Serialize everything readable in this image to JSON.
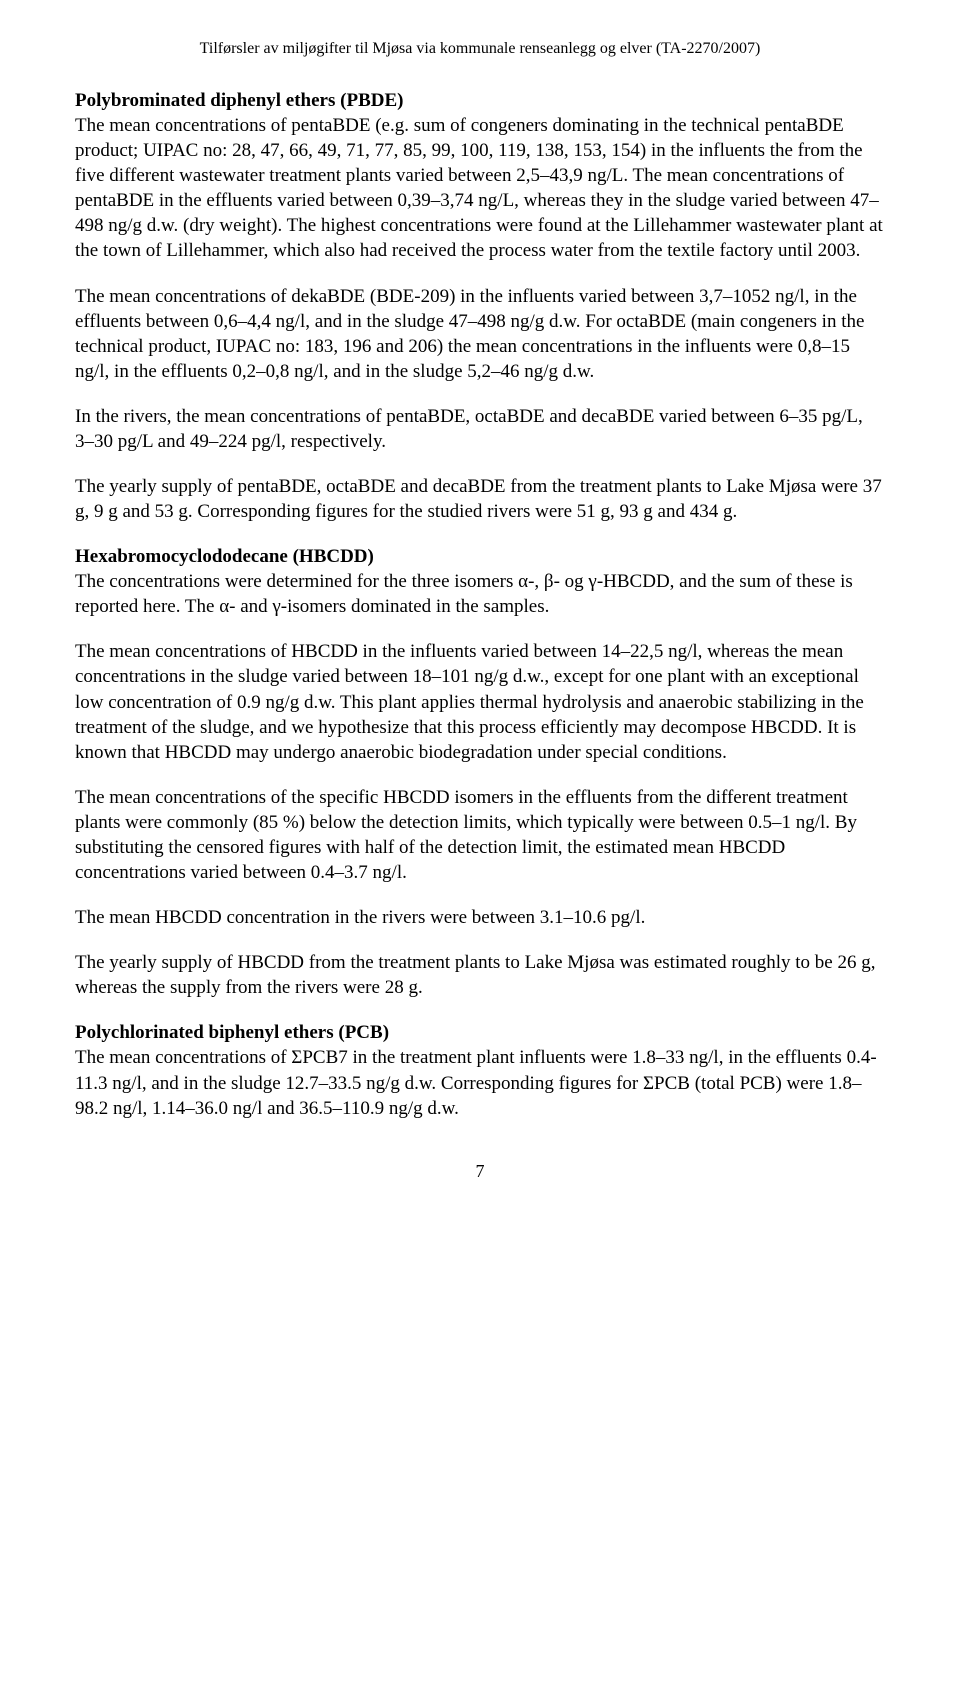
{
  "header": "Tilførsler av miljøgifter til Mjøsa via kommunale renseanlegg og elver (TA-2270/2007)",
  "section1": {
    "title": "Polybrominated diphenyl ethers (PBDE)",
    "p1": "The mean concentrations of pentaBDE (e.g. sum of congeners dominating in the technical pentaBDE product; UIPAC no: 28, 47, 66, 49, 71, 77, 85, 99, 100, 119, 138, 153, 154) in the influents the from the five different wastewater treatment plants varied between 2,5–43,9 ng/L. The mean concentrations of pentaBDE in the effluents varied between 0,39–3,74 ng/L, whereas they in the sludge varied between 47–498 ng/g d.w. (dry weight). The highest concentrations were found at the Lillehammer wastewater plant at the town of Lillehammer, which also had received the process water from the textile factory until 2003.",
    "p2": "The mean concentrations of dekaBDE (BDE-209) in the influents varied between 3,7–1052 ng/l, in the effluents between 0,6–4,4 ng/l, and in the sludge 47–498 ng/g d.w. For octaBDE (main congeners in the technical product, IUPAC no: 183, 196 and 206) the mean concentrations in the influents were 0,8–15 ng/l, in the effluents 0,2–0,8 ng/l, and in the sludge 5,2–46 ng/g d.w.",
    "p3": "In the rivers, the mean concentrations of pentaBDE, octaBDE and decaBDE varied between 6–35 pg/L, 3–30 pg/L and 49–224 pg/l, respectively.",
    "p4": "The yearly supply of pentaBDE, octaBDE and decaBDE from the treatment plants to Lake Mjøsa were 37 g, 9 g and 53 g. Corresponding figures for the studied rivers were 51 g, 93 g and 434 g."
  },
  "section2": {
    "title": "Hexabromocyclododecane (HBCDD)",
    "p1": "The concentrations were determined for the three isomers α-, β- og γ-HBCDD, and the sum of these is reported here. The α- and γ-isomers dominated in the samples.",
    "p2": "The mean concentrations of HBCDD in the influents varied between 14–22,5 ng/l, whereas the mean concentrations in the sludge varied between 18–101 ng/g d.w., except for one plant with an exceptional low concentration of 0.9 ng/g d.w. This plant applies thermal hydrolysis and anaerobic stabilizing in the treatment of the sludge, and we hypothesize that this process efficiently may decompose HBCDD. It is known that HBCDD may undergo anaerobic biodegradation under special conditions.",
    "p3": "The mean concentrations of the specific HBCDD isomers in the effluents from the different treatment plants were commonly (85 %) below the detection limits, which typically were between 0.5–1 ng/l. By substituting the censored figures with half of the detection limit, the estimated mean HBCDD concentrations varied between 0.4–3.7 ng/l.",
    "p4": "The mean HBCDD concentration in the rivers were between 3.1–10.6 pg/l.",
    "p5": "The yearly supply of HBCDD from the treatment plants to Lake Mjøsa was estimated roughly to be 26 g, whereas the supply from the rivers were 28 g."
  },
  "section3": {
    "title": "Polychlorinated biphenyl ethers (PCB)",
    "p1": "The mean concentrations of ΣPCB7 in the treatment plant influents were 1.8–33 ng/l, in the effluents 0.4-11.3 ng/l, and in the sludge 12.7–33.5 ng/g d.w. Corresponding figures for ΣPCB (total PCB) were 1.8–98.2 ng/l, 1.14–36.0 ng/l and 36.5–110.9 ng/g d.w."
  },
  "pageNumber": "7"
}
